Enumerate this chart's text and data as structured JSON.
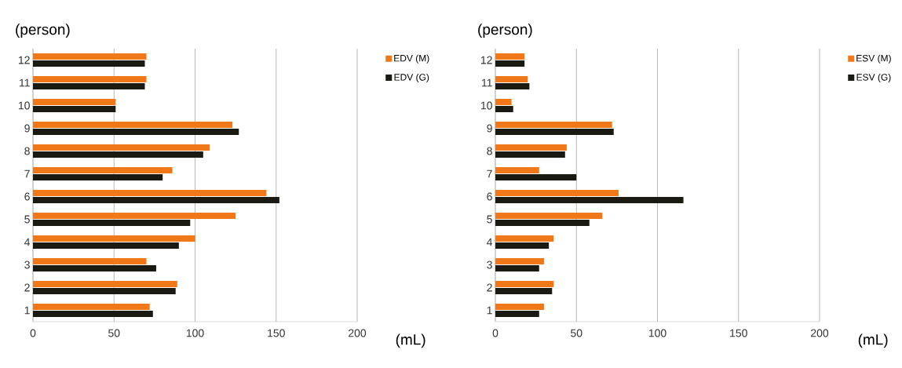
{
  "chart_data": [
    {
      "type": "bar",
      "orientation": "horizontal",
      "xlabel": "(mL)",
      "ylabel": "(person)",
      "categories": [
        "12",
        "11",
        "10",
        "9",
        "8",
        "7",
        "6",
        "5",
        "4",
        "3",
        "2",
        "1"
      ],
      "series": [
        {
          "name": "EDV (M)",
          "color": "#f07818",
          "values": [
            70,
            70,
            51,
            123,
            109,
            86,
            144,
            125,
            100,
            70,
            89,
            72
          ]
        },
        {
          "name": "EDV (G)",
          "color": "#1a1a12",
          "values": [
            69,
            69,
            51,
            127,
            105,
            80,
            152,
            97,
            90,
            76,
            88,
            74
          ]
        }
      ],
      "xlim": [
        0,
        200
      ],
      "xticks": [
        0,
        50,
        100,
        150,
        200
      ],
      "grid": "x",
      "legend": "right"
    },
    {
      "type": "bar",
      "orientation": "horizontal",
      "xlabel": "(mL)",
      "ylabel": "(person)",
      "categories": [
        "12",
        "11",
        "10",
        "9",
        "8",
        "7",
        "6",
        "5",
        "4",
        "3",
        "2",
        "1"
      ],
      "series": [
        {
          "name": "ESV (M)",
          "color": "#f07818",
          "values": [
            18,
            20,
            10,
            72,
            44,
            27,
            76,
            66,
            36,
            30,
            36,
            30
          ]
        },
        {
          "name": "ESV (G)",
          "color": "#1a1a12",
          "values": [
            18,
            21,
            11,
            73,
            43,
            50,
            116,
            58,
            33,
            27,
            35,
            27
          ]
        }
      ],
      "xlim": [
        0,
        200
      ],
      "xticks": [
        0,
        50,
        100,
        150,
        200
      ],
      "grid": "x",
      "legend": "right"
    }
  ]
}
